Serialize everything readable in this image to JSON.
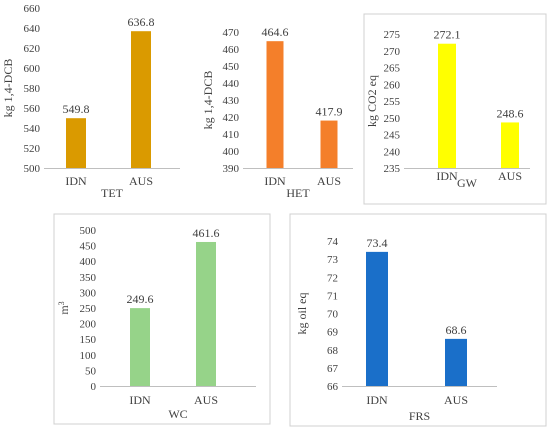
{
  "chart_data": [
    {
      "type": "bar",
      "title": "TET",
      "ylabel": "kg 1,4-DCB",
      "categories": [
        "IDN",
        "AUS"
      ],
      "values": [
        549.8,
        636.8
      ],
      "data_labels": [
        "549.8",
        "636.8"
      ],
      "ylim": [
        500,
        660
      ],
      "yticks": [
        500,
        520,
        540,
        560,
        580,
        600,
        620,
        640,
        660
      ],
      "color": "#DA9A00",
      "grid": false,
      "frame": false
    },
    {
      "type": "bar",
      "title": "HET",
      "ylabel": "kg 1,4-DCB",
      "categories": [
        "IDN",
        "AUS"
      ],
      "values": [
        464.6,
        417.9
      ],
      "data_labels": [
        "464.6",
        "417.9"
      ],
      "ylim": [
        390,
        470
      ],
      "yticks": [
        390,
        400,
        410,
        420,
        430,
        440,
        450,
        460,
        470
      ],
      "color": "#F47F2A",
      "grid": false,
      "frame": false
    },
    {
      "type": "bar",
      "title": "GW",
      "ylabel": "kg CO2 eq",
      "categories": [
        "IDN",
        "AUS"
      ],
      "values": [
        272.1,
        248.6
      ],
      "data_labels": [
        "272.1",
        "248.6"
      ],
      "ylim": [
        235,
        275
      ],
      "yticks": [
        235,
        240,
        245,
        250,
        255,
        260,
        265,
        270,
        275
      ],
      "color": "#FFFF00",
      "grid": false,
      "frame": true
    },
    {
      "type": "bar",
      "title": "WC",
      "ylabel": "m3",
      "categories": [
        "IDN",
        "AUS"
      ],
      "values": [
        249.6,
        461.6
      ],
      "data_labels": [
        "249.6",
        "461.6"
      ],
      "ylim": [
        0,
        500
      ],
      "yticks": [
        0,
        50,
        100,
        150,
        200,
        250,
        300,
        350,
        400,
        450,
        500
      ],
      "color": "#96D389",
      "grid": false,
      "frame": true
    },
    {
      "type": "bar",
      "title": "FRS",
      "ylabel": "kg oil eq",
      "categories": [
        "IDN",
        "AUS"
      ],
      "values": [
        73.4,
        68.6
      ],
      "data_labels": [
        "73.4",
        "68.6"
      ],
      "ylim": [
        66,
        74
      ],
      "yticks": [
        66,
        67,
        68,
        69,
        70,
        71,
        72,
        73,
        74
      ],
      "color": "#1A6FC9",
      "grid": false,
      "frame": true
    }
  ]
}
